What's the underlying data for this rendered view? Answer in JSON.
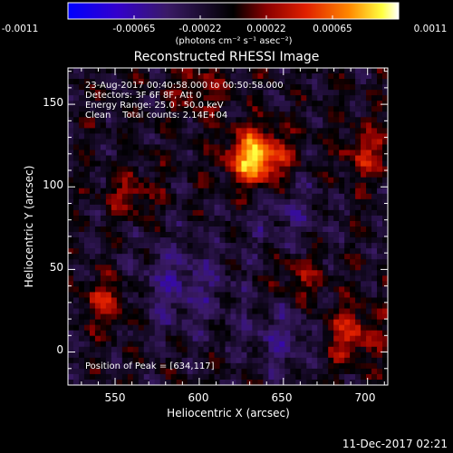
{
  "colorbar": {
    "tick_labels": [
      "-0.0011",
      "-0.00065",
      "-0.00022",
      "0.00022",
      "0.00065",
      "0.0011"
    ],
    "units_label": "(photons cm⁻² s⁻¹ asec⁻²)",
    "range": [
      -0.0011,
      0.0011
    ]
  },
  "chart_data": {
    "type": "heatmap",
    "title": "Reconstructed RHESSI Image",
    "xlabel": "Heliocentric X (arcsec)",
    "ylabel": "Heliocentric Y (arcsec)",
    "xlim": [
      522,
      712
    ],
    "ylim": [
      -20,
      172
    ],
    "x_ticks": [
      550,
      600,
      650,
      700
    ],
    "y_ticks": [
      0,
      50,
      100,
      150
    ],
    "annotations": [
      "23-Aug-2017 00:40:58.000 to 00:50:58.000",
      "Detectors: 3F 6F 8F, Att 0",
      "Energy Range: 25.0 - 50.0 keV",
      "Clean    Total counts: 2.14E+04"
    ],
    "peak_label": "Position of Peak = [634,117]",
    "peak": [
      634,
      117
    ],
    "blobs": [
      {
        "x": 634,
        "y": 117,
        "w": 0.0011,
        "s": 12
      },
      {
        "x": 560,
        "y": 95,
        "w": 0.00035,
        "s": 10
      },
      {
        "x": 545,
        "y": 30,
        "w": 0.00045,
        "s": 10
      },
      {
        "x": 700,
        "y": 120,
        "w": 0.0004,
        "s": 12
      },
      {
        "x": 690,
        "y": 10,
        "w": 0.0005,
        "s": 12
      },
      {
        "x": 660,
        "y": 45,
        "w": 0.00035,
        "s": 10
      },
      {
        "x": 600,
        "y": 160,
        "w": 0.0003,
        "s": 12
      },
      {
        "x": 590,
        "y": 40,
        "w": -0.00035,
        "s": 20
      },
      {
        "x": 650,
        "y": 85,
        "w": -0.00025,
        "s": 18
      },
      {
        "x": 650,
        "y": 10,
        "w": -0.0003,
        "s": 16
      }
    ]
  },
  "footer_date": "11-Dec-2017 02:21"
}
